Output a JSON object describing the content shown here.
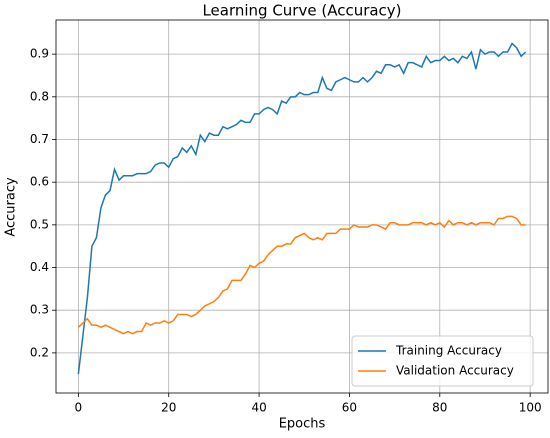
{
  "chart_data": {
    "type": "line",
    "title": "Learning Curve (Accuracy)",
    "x_label": "Epochs",
    "y_label": "Accuracy",
    "x": [
      0,
      1,
      2,
      3,
      4,
      5,
      6,
      7,
      8,
      9,
      10,
      11,
      12,
      13,
      14,
      15,
      16,
      17,
      18,
      19,
      20,
      21,
      22,
      23,
      24,
      25,
      26,
      27,
      28,
      29,
      30,
      31,
      32,
      33,
      34,
      35,
      36,
      37,
      38,
      39,
      40,
      41,
      42,
      43,
      44,
      45,
      46,
      47,
      48,
      49,
      50,
      51,
      52,
      53,
      54,
      55,
      56,
      57,
      58,
      59,
      60,
      61,
      62,
      63,
      64,
      65,
      66,
      67,
      68,
      69,
      70,
      71,
      72,
      73,
      74,
      75,
      76,
      77,
      78,
      79,
      80,
      81,
      82,
      83,
      84,
      85,
      86,
      87,
      88,
      89,
      90,
      91,
      92,
      93,
      94,
      95,
      96,
      97,
      98,
      99
    ],
    "series": [
      {
        "name": "Training Accuracy",
        "color": "#1f77b4",
        "values": [
          0.15,
          0.24,
          0.33,
          0.45,
          0.47,
          0.54,
          0.57,
          0.58,
          0.63,
          0.605,
          0.615,
          0.615,
          0.615,
          0.62,
          0.62,
          0.62,
          0.625,
          0.64,
          0.645,
          0.645,
          0.635,
          0.655,
          0.66,
          0.68,
          0.67,
          0.685,
          0.665,
          0.71,
          0.695,
          0.715,
          0.71,
          0.71,
          0.73,
          0.725,
          0.73,
          0.735,
          0.745,
          0.74,
          0.74,
          0.76,
          0.76,
          0.77,
          0.775,
          0.77,
          0.76,
          0.79,
          0.785,
          0.8,
          0.8,
          0.81,
          0.805,
          0.805,
          0.81,
          0.81,
          0.845,
          0.82,
          0.815,
          0.835,
          0.84,
          0.845,
          0.84,
          0.835,
          0.835,
          0.845,
          0.835,
          0.845,
          0.86,
          0.855,
          0.875,
          0.875,
          0.87,
          0.875,
          0.855,
          0.88,
          0.88,
          0.875,
          0.87,
          0.895,
          0.88,
          0.885,
          0.885,
          0.895,
          0.885,
          0.89,
          0.88,
          0.895,
          0.89,
          0.905,
          0.865,
          0.91,
          0.9,
          0.905,
          0.905,
          0.895,
          0.905,
          0.905,
          0.925,
          0.915,
          0.895,
          0.905
        ]
      },
      {
        "name": "Validation Accuracy",
        "color": "#ff7f0e",
        "values": [
          0.26,
          0.27,
          0.28,
          0.265,
          0.265,
          0.26,
          0.265,
          0.26,
          0.255,
          0.25,
          0.245,
          0.25,
          0.245,
          0.25,
          0.25,
          0.27,
          0.265,
          0.27,
          0.27,
          0.275,
          0.27,
          0.275,
          0.29,
          0.29,
          0.29,
          0.285,
          0.29,
          0.3,
          0.31,
          0.315,
          0.32,
          0.33,
          0.345,
          0.35,
          0.37,
          0.37,
          0.37,
          0.385,
          0.405,
          0.4,
          0.41,
          0.415,
          0.43,
          0.44,
          0.45,
          0.45,
          0.455,
          0.455,
          0.47,
          0.475,
          0.48,
          0.47,
          0.465,
          0.47,
          0.465,
          0.48,
          0.48,
          0.48,
          0.49,
          0.49,
          0.49,
          0.5,
          0.495,
          0.495,
          0.495,
          0.5,
          0.5,
          0.495,
          0.49,
          0.505,
          0.505,
          0.5,
          0.5,
          0.5,
          0.505,
          0.505,
          0.505,
          0.5,
          0.505,
          0.5,
          0.505,
          0.495,
          0.51,
          0.5,
          0.505,
          0.505,
          0.5,
          0.505,
          0.5,
          0.505,
          0.505,
          0.505,
          0.5,
          0.515,
          0.515,
          0.52,
          0.52,
          0.515,
          0.5,
          0.5
        ]
      }
    ],
    "xlim": [
      -4.95,
      103.95
    ],
    "ylim": [
      0.106,
      0.98
    ],
    "xticks": [
      0,
      20,
      40,
      60,
      80,
      100
    ],
    "yticks": [
      0.2,
      0.3,
      0.4,
      0.5,
      0.6,
      0.7,
      0.8,
      0.9
    ],
    "grid": true,
    "legend": "lower right"
  }
}
